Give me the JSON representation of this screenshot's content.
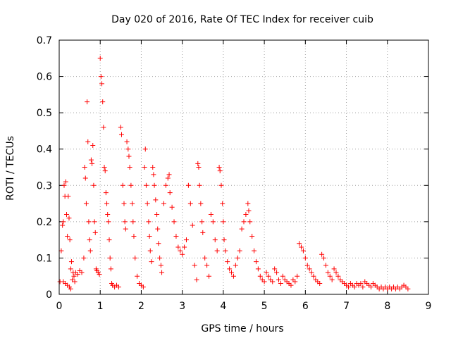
{
  "chart_data": {
    "type": "scatter",
    "title": "Day 020 of 2016, Rate Of TEC Index for receiver cuib",
    "xlabel": "GPS time / hours",
    "ylabel": "ROTI / TECUs",
    "xlim": [
      0,
      9
    ],
    "ylim": [
      0,
      0.7
    ],
    "xticks": [
      0,
      1,
      2,
      3,
      4,
      5,
      6,
      7,
      8,
      9
    ],
    "yticks": [
      0,
      0.1,
      0.2,
      0.3,
      0.4,
      0.5,
      0.6,
      0.7
    ],
    "x_tick_labels": [
      "0",
      "1",
      "2",
      "3",
      "4",
      "5",
      "6",
      "7",
      "8",
      "9"
    ],
    "y_tick_labels": [
      "0",
      "0.1",
      "0.2",
      "0.3",
      "0.4",
      "0.5",
      "0.6",
      "0.7"
    ],
    "grid": true,
    "marker": "+",
    "series": [
      {
        "name": "ROTI",
        "color": "#ff0000",
        "points": [
          [
            0.02,
            0.035
          ],
          [
            0.05,
            0.12
          ],
          [
            0.08,
            0.19
          ],
          [
            0.1,
            0.2
          ],
          [
            0.12,
            0.3
          ],
          [
            0.14,
            0.27
          ],
          [
            0.16,
            0.31
          ],
          [
            0.18,
            0.22
          ],
          [
            0.2,
            0.16
          ],
          [
            0.22,
            0.27
          ],
          [
            0.24,
            0.21
          ],
          [
            0.26,
            0.15
          ],
          [
            0.28,
            0.07
          ],
          [
            0.3,
            0.09
          ],
          [
            0.32,
            0.04
          ],
          [
            0.34,
            0.06
          ],
          [
            0.36,
            0.05
          ],
          [
            0.38,
            0.035
          ],
          [
            0.1,
            0.035
          ],
          [
            0.15,
            0.03
          ],
          [
            0.2,
            0.025
          ],
          [
            0.25,
            0.02
          ],
          [
            0.28,
            0.015
          ],
          [
            0.4,
            0.06
          ],
          [
            0.45,
            0.055
          ],
          [
            0.5,
            0.065
          ],
          [
            0.55,
            0.06
          ],
          [
            0.6,
            0.1
          ],
          [
            0.62,
            0.35
          ],
          [
            0.64,
            0.32
          ],
          [
            0.66,
            0.25
          ],
          [
            0.68,
            0.53
          ],
          [
            0.7,
            0.42
          ],
          [
            0.72,
            0.2
          ],
          [
            0.74,
            0.15
          ],
          [
            0.76,
            0.12
          ],
          [
            0.78,
            0.37
          ],
          [
            0.8,
            0.36
          ],
          [
            0.82,
            0.41
          ],
          [
            0.84,
            0.3
          ],
          [
            0.86,
            0.2
          ],
          [
            0.88,
            0.17
          ],
          [
            0.9,
            0.07
          ],
          [
            0.92,
            0.065
          ],
          [
            0.95,
            0.06
          ],
          [
            0.98,
            0.055
          ],
          [
            1.0,
            0.65
          ],
          [
            1.02,
            0.6
          ],
          [
            1.04,
            0.58
          ],
          [
            1.06,
            0.53
          ],
          [
            1.08,
            0.46
          ],
          [
            1.1,
            0.35
          ],
          [
            1.12,
            0.34
          ],
          [
            1.14,
            0.28
          ],
          [
            1.16,
            0.25
          ],
          [
            1.18,
            0.22
          ],
          [
            1.2,
            0.2
          ],
          [
            1.22,
            0.15
          ],
          [
            1.24,
            0.1
          ],
          [
            1.26,
            0.07
          ],
          [
            1.28,
            0.03
          ],
          [
            1.3,
            0.025
          ],
          [
            1.35,
            0.02
          ],
          [
            1.4,
            0.025
          ],
          [
            1.45,
            0.02
          ],
          [
            1.5,
            0.46
          ],
          [
            1.52,
            0.44
          ],
          [
            1.55,
            0.3
          ],
          [
            1.58,
            0.25
          ],
          [
            1.6,
            0.2
          ],
          [
            1.62,
            0.18
          ],
          [
            1.65,
            0.42
          ],
          [
            1.68,
            0.4
          ],
          [
            1.7,
            0.38
          ],
          [
            1.72,
            0.35
          ],
          [
            1.75,
            0.3
          ],
          [
            1.78,
            0.25
          ],
          [
            1.8,
            0.2
          ],
          [
            1.82,
            0.16
          ],
          [
            1.85,
            0.1
          ],
          [
            1.9,
            0.05
          ],
          [
            1.95,
            0.03
          ],
          [
            2.0,
            0.025
          ],
          [
            2.05,
            0.02
          ],
          [
            2.08,
            0.35
          ],
          [
            2.1,
            0.4
          ],
          [
            2.12,
            0.3
          ],
          [
            2.15,
            0.25
          ],
          [
            2.18,
            0.2
          ],
          [
            2.2,
            0.16
          ],
          [
            2.22,
            0.12
          ],
          [
            2.25,
            0.09
          ],
          [
            2.28,
            0.35
          ],
          [
            2.3,
            0.33
          ],
          [
            2.32,
            0.3
          ],
          [
            2.35,
            0.26
          ],
          [
            2.38,
            0.22
          ],
          [
            2.4,
            0.18
          ],
          [
            2.42,
            0.14
          ],
          [
            2.45,
            0.1
          ],
          [
            2.48,
            0.08
          ],
          [
            2.5,
            0.06
          ],
          [
            2.55,
            0.25
          ],
          [
            2.6,
            0.3
          ],
          [
            2.65,
            0.32
          ],
          [
            2.68,
            0.33
          ],
          [
            2.7,
            0.28
          ],
          [
            2.75,
            0.24
          ],
          [
            2.8,
            0.2
          ],
          [
            2.85,
            0.16
          ],
          [
            2.9,
            0.13
          ],
          [
            2.95,
            0.12
          ],
          [
            3.0,
            0.11
          ],
          [
            3.05,
            0.13
          ],
          [
            3.1,
            0.15
          ],
          [
            3.15,
            0.3
          ],
          [
            3.2,
            0.25
          ],
          [
            3.25,
            0.19
          ],
          [
            3.3,
            0.08
          ],
          [
            3.35,
            0.04
          ],
          [
            3.38,
            0.36
          ],
          [
            3.4,
            0.35
          ],
          [
            3.42,
            0.3
          ],
          [
            3.45,
            0.25
          ],
          [
            3.48,
            0.2
          ],
          [
            3.5,
            0.17
          ],
          [
            3.55,
            0.1
          ],
          [
            3.6,
            0.08
          ],
          [
            3.65,
            0.05
          ],
          [
            3.7,
            0.22
          ],
          [
            3.75,
            0.2
          ],
          [
            3.8,
            0.15
          ],
          [
            3.85,
            0.12
          ],
          [
            3.9,
            0.35
          ],
          [
            3.92,
            0.34
          ],
          [
            3.95,
            0.3
          ],
          [
            3.98,
            0.25
          ],
          [
            4.0,
            0.2
          ],
          [
            4.02,
            0.15
          ],
          [
            4.05,
            0.12
          ],
          [
            4.1,
            0.09
          ],
          [
            4.15,
            0.07
          ],
          [
            4.2,
            0.06
          ],
          [
            4.25,
            0.05
          ],
          [
            4.3,
            0.08
          ],
          [
            4.35,
            0.1
          ],
          [
            4.4,
            0.12
          ],
          [
            4.45,
            0.18
          ],
          [
            4.5,
            0.2
          ],
          [
            4.55,
            0.22
          ],
          [
            4.6,
            0.25
          ],
          [
            4.62,
            0.23
          ],
          [
            4.65,
            0.2
          ],
          [
            4.7,
            0.16
          ],
          [
            4.75,
            0.12
          ],
          [
            4.8,
            0.09
          ],
          [
            4.85,
            0.07
          ],
          [
            4.9,
            0.05
          ],
          [
            4.95,
            0.04
          ],
          [
            5.0,
            0.035
          ],
          [
            5.05,
            0.06
          ],
          [
            5.1,
            0.05
          ],
          [
            5.15,
            0.04
          ],
          [
            5.2,
            0.035
          ],
          [
            5.25,
            0.07
          ],
          [
            5.3,
            0.06
          ],
          [
            5.35,
            0.04
          ],
          [
            5.4,
            0.03
          ],
          [
            5.45,
            0.05
          ],
          [
            5.5,
            0.04
          ],
          [
            5.55,
            0.035
          ],
          [
            5.6,
            0.03
          ],
          [
            5.65,
            0.025
          ],
          [
            5.7,
            0.04
          ],
          [
            5.75,
            0.035
          ],
          [
            5.8,
            0.05
          ],
          [
            5.85,
            0.14
          ],
          [
            5.9,
            0.13
          ],
          [
            5.95,
            0.12
          ],
          [
            6.0,
            0.1
          ],
          [
            6.05,
            0.08
          ],
          [
            6.1,
            0.07
          ],
          [
            6.15,
            0.06
          ],
          [
            6.2,
            0.05
          ],
          [
            6.25,
            0.04
          ],
          [
            6.3,
            0.035
          ],
          [
            6.35,
            0.03
          ],
          [
            6.4,
            0.11
          ],
          [
            6.45,
            0.1
          ],
          [
            6.5,
            0.08
          ],
          [
            6.55,
            0.06
          ],
          [
            6.6,
            0.05
          ],
          [
            6.65,
            0.04
          ],
          [
            6.7,
            0.07
          ],
          [
            6.75,
            0.06
          ],
          [
            6.8,
            0.05
          ],
          [
            6.85,
            0.04
          ],
          [
            6.9,
            0.035
          ],
          [
            6.95,
            0.03
          ],
          [
            7.0,
            0.025
          ],
          [
            7.05,
            0.02
          ],
          [
            7.1,
            0.03
          ],
          [
            7.15,
            0.025
          ],
          [
            7.2,
            0.02
          ],
          [
            7.25,
            0.03
          ],
          [
            7.3,
            0.025
          ],
          [
            7.35,
            0.03
          ],
          [
            7.4,
            0.02
          ],
          [
            7.45,
            0.035
          ],
          [
            7.5,
            0.03
          ],
          [
            7.55,
            0.025
          ],
          [
            7.6,
            0.02
          ],
          [
            7.65,
            0.03
          ],
          [
            7.7,
            0.025
          ],
          [
            7.75,
            0.02
          ],
          [
            7.8,
            0.015
          ],
          [
            7.85,
            0.02
          ],
          [
            7.9,
            0.015
          ],
          [
            7.95,
            0.02
          ],
          [
            8.0,
            0.015
          ],
          [
            8.05,
            0.02
          ],
          [
            8.1,
            0.015
          ],
          [
            8.15,
            0.02
          ],
          [
            8.2,
            0.015
          ],
          [
            8.25,
            0.02
          ],
          [
            8.3,
            0.015
          ],
          [
            8.35,
            0.02
          ],
          [
            8.4,
            0.025
          ],
          [
            8.45,
            0.02
          ],
          [
            8.5,
            0.015
          ]
        ]
      }
    ]
  }
}
